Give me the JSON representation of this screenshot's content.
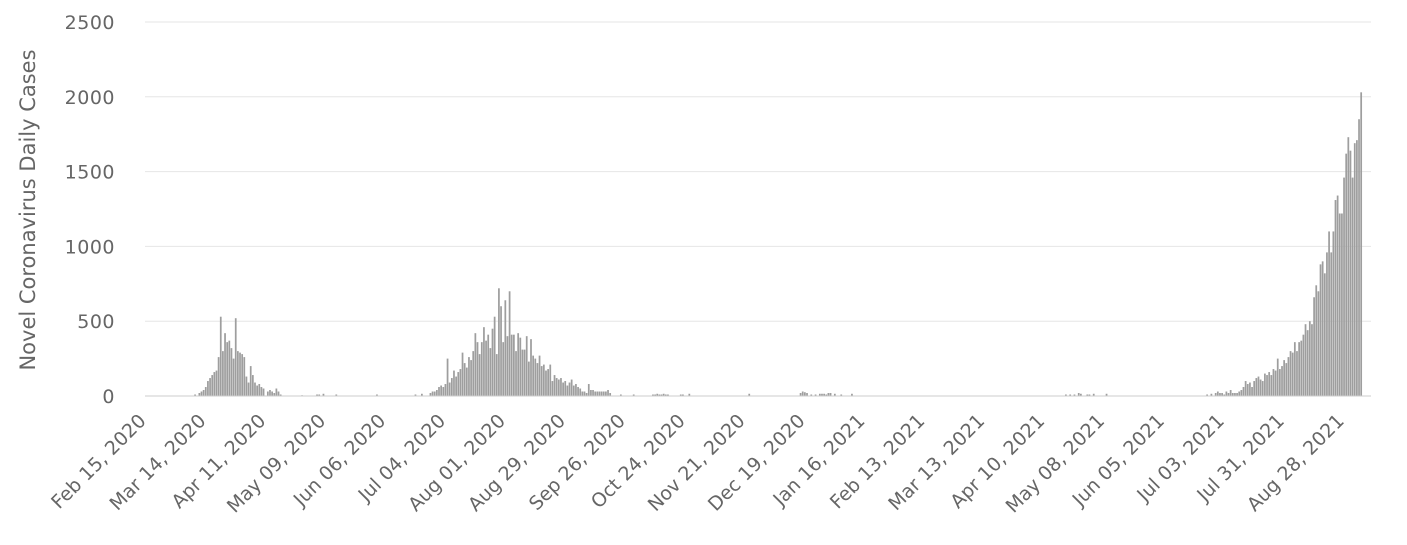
{
  "chart_data": {
    "type": "bar",
    "title": "",
    "xlabel": "",
    "ylabel": "Novel Coronavirus Daily Cases",
    "ylim": [
      0,
      2500
    ],
    "yticks": [
      0,
      500,
      1000,
      1500,
      2000,
      2500
    ],
    "grid": true,
    "legend": "none",
    "x_start": "Feb 15, 2020",
    "x_end": "Sep 09, 2021",
    "xtick_labels": [
      "Feb 15, 2020",
      "Mar 14, 2020",
      "Apr 11, 2020",
      "May 09, 2020",
      "Jun 06, 2020",
      "Jul 04, 2020",
      "Aug 01, 2020",
      "Aug 29, 2020",
      "Sep 26, 2020",
      "Oct 24, 2020",
      "Nov 21, 2020",
      "Dec 19, 2020",
      "Jan 16, 2021",
      "Feb 13, 2021",
      "Mar 13, 2021",
      "Apr 10, 2021",
      "May 08, 2021",
      "Jun 05, 2021",
      "Jul 03, 2021",
      "Jul 31, 2021",
      "Aug 28, 2021"
    ],
    "bar_color": "#9e9e9e",
    "series": [
      {
        "points": [
          [
            "Mar 09, 2020",
            10
          ],
          [
            "Mar 11, 2020",
            20
          ],
          [
            "Mar 12, 2020",
            30
          ],
          [
            "Mar 13, 2020",
            40
          ],
          [
            "Mar 14, 2020",
            60
          ],
          [
            "Mar 15, 2020",
            100
          ],
          [
            "Mar 16, 2020",
            120
          ],
          [
            "Mar 17, 2020",
            140
          ],
          [
            "Mar 18, 2020",
            160
          ],
          [
            "Mar 19, 2020",
            170
          ],
          [
            "Mar 20, 2020",
            260
          ],
          [
            "Mar 21, 2020",
            530
          ],
          [
            "Mar 22, 2020",
            300
          ],
          [
            "Mar 23, 2020",
            420
          ],
          [
            "Mar 24, 2020",
            360
          ],
          [
            "Mar 25, 2020",
            370
          ],
          [
            "Mar 26, 2020",
            320
          ],
          [
            "Mar 27, 2020",
            250
          ],
          [
            "Mar 28, 2020",
            520
          ],
          [
            "Mar 29, 2020",
            300
          ],
          [
            "Mar 30, 2020",
            290
          ],
          [
            "Mar 31, 2020",
            280
          ],
          [
            "Apr 01, 2020",
            260
          ],
          [
            "Apr 02, 2020",
            130
          ],
          [
            "Apr 03, 2020",
            90
          ],
          [
            "Apr 04, 2020",
            200
          ],
          [
            "Apr 05, 2020",
            140
          ],
          [
            "Apr 06, 2020",
            90
          ],
          [
            "Apr 07, 2020",
            70
          ],
          [
            "Apr 08, 2020",
            80
          ],
          [
            "Apr 09, 2020",
            60
          ],
          [
            "Apr 10, 2020",
            50
          ],
          [
            "Apr 12, 2020",
            30
          ],
          [
            "Apr 13, 2020",
            40
          ],
          [
            "Apr 14, 2020",
            30
          ],
          [
            "Apr 15, 2020",
            20
          ],
          [
            "Apr 16, 2020",
            50
          ],
          [
            "Apr 17, 2020",
            30
          ],
          [
            "Apr 18, 2020",
            10
          ],
          [
            "Apr 28, 2020",
            5
          ],
          [
            "May 05, 2020",
            10
          ],
          [
            "May 06, 2020",
            10
          ],
          [
            "May 08, 2020",
            15
          ],
          [
            "May 14, 2020",
            10
          ],
          [
            "Jun 02, 2020",
            10
          ],
          [
            "Jun 20, 2020",
            10
          ],
          [
            "Jun 23, 2020",
            15
          ],
          [
            "Jun 27, 2020",
            20
          ],
          [
            "Jun 28, 2020",
            30
          ],
          [
            "Jun 29, 2020",
            30
          ],
          [
            "Jun 30, 2020",
            40
          ],
          [
            "Jul 01, 2020",
            60
          ],
          [
            "Jul 02, 2020",
            70
          ],
          [
            "Jul 03, 2020",
            60
          ],
          [
            "Jul 04, 2020",
            80
          ],
          [
            "Jul 05, 2020",
            250
          ],
          [
            "Jul 06, 2020",
            90
          ],
          [
            "Jul 07, 2020",
            120
          ],
          [
            "Jul 08, 2020",
            170
          ],
          [
            "Jul 09, 2020",
            130
          ],
          [
            "Jul 10, 2020",
            160
          ],
          [
            "Jul 11, 2020",
            180
          ],
          [
            "Jul 12, 2020",
            290
          ],
          [
            "Jul 13, 2020",
            220
          ],
          [
            "Jul 14, 2020",
            190
          ],
          [
            "Jul 15, 2020",
            260
          ],
          [
            "Jul 16, 2020",
            240
          ],
          [
            "Jul 17, 2020",
            300
          ],
          [
            "Jul 18, 2020",
            420
          ],
          [
            "Jul 19, 2020",
            360
          ],
          [
            "Jul 20, 2020",
            280
          ],
          [
            "Jul 21, 2020",
            360
          ],
          [
            "Jul 22, 2020",
            460
          ],
          [
            "Jul 23, 2020",
            370
          ],
          [
            "Jul 24, 2020",
            410
          ],
          [
            "Jul 25, 2020",
            320
          ],
          [
            "Jul 26, 2020",
            450
          ],
          [
            "Jul 27, 2020",
            530
          ],
          [
            "Jul 28, 2020",
            280
          ],
          [
            "Jul 29, 2020",
            720
          ],
          [
            "Jul 30, 2020",
            600
          ],
          [
            "Jul 31, 2020",
            360
          ],
          [
            "Aug 01, 2020",
            640
          ],
          [
            "Aug 02, 2020",
            400
          ],
          [
            "Aug 03, 2020",
            700
          ],
          [
            "Aug 04, 2020",
            410
          ],
          [
            "Aug 05, 2020",
            410
          ],
          [
            "Aug 06, 2020",
            300
          ],
          [
            "Aug 07, 2020",
            420
          ],
          [
            "Aug 08, 2020",
            390
          ],
          [
            "Aug 09, 2020",
            310
          ],
          [
            "Aug 10, 2020",
            310
          ],
          [
            "Aug 11, 2020",
            400
          ],
          [
            "Aug 12, 2020",
            230
          ],
          [
            "Aug 13, 2020",
            380
          ],
          [
            "Aug 14, 2020",
            270
          ],
          [
            "Aug 15, 2020",
            250
          ],
          [
            "Aug 16, 2020",
            220
          ],
          [
            "Aug 17, 2020",
            270
          ],
          [
            "Aug 18, 2020",
            200
          ],
          [
            "Aug 19, 2020",
            210
          ],
          [
            "Aug 20, 2020",
            170
          ],
          [
            "Aug 21, 2020",
            180
          ],
          [
            "Aug 22, 2020",
            210
          ],
          [
            "Aug 23, 2020",
            100
          ],
          [
            "Aug 24, 2020",
            140
          ],
          [
            "Aug 25, 2020",
            120
          ],
          [
            "Aug 26, 2020",
            110
          ],
          [
            "Aug 27, 2020",
            120
          ],
          [
            "Aug 28, 2020",
            90
          ],
          [
            "Aug 29, 2020",
            100
          ],
          [
            "Aug 30, 2020",
            70
          ],
          [
            "Aug 31, 2020",
            90
          ],
          [
            "Sep 01, 2020",
            110
          ],
          [
            "Sep 02, 2020",
            70
          ],
          [
            "Sep 03, 2020",
            80
          ],
          [
            "Sep 04, 2020",
            60
          ],
          [
            "Sep 05, 2020",
            50
          ],
          [
            "Sep 06, 2020",
            30
          ],
          [
            "Sep 07, 2020",
            30
          ],
          [
            "Sep 08, 2020",
            20
          ],
          [
            "Sep 09, 2020",
            80
          ],
          [
            "Sep 10, 2020",
            40
          ],
          [
            "Sep 11, 2020",
            40
          ],
          [
            "Sep 12, 2020",
            30
          ],
          [
            "Sep 13, 2020",
            30
          ],
          [
            "Sep 14, 2020",
            30
          ],
          [
            "Sep 15, 2020",
            30
          ],
          [
            "Sep 16, 2020",
            30
          ],
          [
            "Sep 17, 2020",
            30
          ],
          [
            "Sep 18, 2020",
            40
          ],
          [
            "Sep 19, 2020",
            20
          ],
          [
            "Sep 24, 2020",
            10
          ],
          [
            "Sep 30, 2020",
            10
          ],
          [
            "Oct 09, 2020",
            10
          ],
          [
            "Oct 10, 2020",
            10
          ],
          [
            "Oct 11, 2020",
            15
          ],
          [
            "Oct 12, 2020",
            10
          ],
          [
            "Oct 13, 2020",
            10
          ],
          [
            "Oct 14, 2020",
            15
          ],
          [
            "Oct 15, 2020",
            10
          ],
          [
            "Oct 16, 2020",
            10
          ],
          [
            "Oct 22, 2020",
            10
          ],
          [
            "Oct 23, 2020",
            10
          ],
          [
            "Oct 26, 2020",
            15
          ],
          [
            "Nov 23, 2020",
            15
          ],
          [
            "Dec 17, 2020",
            20
          ],
          [
            "Dec 18, 2020",
            30
          ],
          [
            "Dec 19, 2020",
            25
          ],
          [
            "Dec 20, 2020",
            20
          ],
          [
            "Dec 22, 2020",
            10
          ],
          [
            "Dec 24, 2020",
            10
          ],
          [
            "Dec 26, 2020",
            15
          ],
          [
            "Dec 27, 2020",
            15
          ],
          [
            "Dec 28, 2020",
            15
          ],
          [
            "Dec 29, 2020",
            10
          ],
          [
            "Dec 30, 2020",
            20
          ],
          [
            "Dec 31, 2020",
            20
          ],
          [
            "Jan 02, 2021",
            15
          ],
          [
            "Jan 05, 2021",
            10
          ],
          [
            "Jan 10, 2021",
            15
          ],
          [
            "Apr 20, 2021",
            10
          ],
          [
            "Apr 22, 2021",
            10
          ],
          [
            "Apr 24, 2021",
            10
          ],
          [
            "Apr 26, 2021",
            20
          ],
          [
            "Apr 27, 2021",
            15
          ],
          [
            "Apr 30, 2021",
            10
          ],
          [
            "May 01, 2021",
            10
          ],
          [
            "May 03, 2021",
            15
          ],
          [
            "May 09, 2021",
            15
          ],
          [
            "Jun 25, 2021",
            10
          ],
          [
            "Jun 27, 2021",
            15
          ],
          [
            "Jun 29, 2021",
            20
          ],
          [
            "Jun 30, 2021",
            30
          ],
          [
            "Jul 01, 2021",
            20
          ],
          [
            "Jul 02, 2021",
            20
          ],
          [
            "Jul 03, 2021",
            10
          ],
          [
            "Jul 04, 2021",
            30
          ],
          [
            "Jul 05, 2021",
            20
          ],
          [
            "Jul 06, 2021",
            40
          ],
          [
            "Jul 07, 2021",
            20
          ],
          [
            "Jul 08, 2021",
            20
          ],
          [
            "Jul 09, 2021",
            20
          ],
          [
            "Jul 10, 2021",
            30
          ],
          [
            "Jul 11, 2021",
            40
          ],
          [
            "Jul 12, 2021",
            60
          ],
          [
            "Jul 13, 2021",
            100
          ],
          [
            "Jul 14, 2021",
            80
          ],
          [
            "Jul 15, 2021",
            90
          ],
          [
            "Jul 16, 2021",
            60
          ],
          [
            "Jul 17, 2021",
            100
          ],
          [
            "Jul 18, 2021",
            120
          ],
          [
            "Jul 19, 2021",
            130
          ],
          [
            "Jul 20, 2021",
            110
          ],
          [
            "Jul 21, 2021",
            100
          ],
          [
            "Jul 22, 2021",
            150
          ],
          [
            "Jul 23, 2021",
            140
          ],
          [
            "Jul 24, 2021",
            160
          ],
          [
            "Jul 25, 2021",
            140
          ],
          [
            "Jul 26, 2021",
            180
          ],
          [
            "Jul 27, 2021",
            170
          ],
          [
            "Jul 28, 2021",
            250
          ],
          [
            "Jul 29, 2021",
            180
          ],
          [
            "Jul 30, 2021",
            200
          ],
          [
            "Jul 31, 2021",
            240
          ],
          [
            "Aug 01, 2021",
            220
          ],
          [
            "Aug 02, 2021",
            260
          ],
          [
            "Aug 03, 2021",
            300
          ],
          [
            "Aug 04, 2021",
            290
          ],
          [
            "Aug 05, 2021",
            360
          ],
          [
            "Aug 06, 2021",
            300
          ],
          [
            "Aug 07, 2021",
            360
          ],
          [
            "Aug 08, 2021",
            370
          ],
          [
            "Aug 09, 2021",
            410
          ],
          [
            "Aug 10, 2021",
            480
          ],
          [
            "Aug 11, 2021",
            440
          ],
          [
            "Aug 12, 2021",
            500
          ],
          [
            "Aug 13, 2021",
            480
          ],
          [
            "Aug 14, 2021",
            660
          ],
          [
            "Aug 15, 2021",
            740
          ],
          [
            "Aug 16, 2021",
            700
          ],
          [
            "Aug 17, 2021",
            880
          ],
          [
            "Aug 18, 2021",
            900
          ],
          [
            "Aug 19, 2021",
            820
          ],
          [
            "Aug 20, 2021",
            960
          ],
          [
            "Aug 21, 2021",
            1100
          ],
          [
            "Aug 22, 2021",
            960
          ],
          [
            "Aug 23, 2021",
            1100
          ],
          [
            "Aug 24, 2021",
            1310
          ],
          [
            "Aug 25, 2021",
            1340
          ],
          [
            "Aug 26, 2021",
            1220
          ],
          [
            "Aug 27, 2021",
            1220
          ],
          [
            "Aug 28, 2021",
            1460
          ],
          [
            "Aug 29, 2021",
            1620
          ],
          [
            "Aug 30, 2021",
            1730
          ],
          [
            "Aug 31, 2021",
            1640
          ],
          [
            "Sep 01, 2021",
            1460
          ],
          [
            "Sep 02, 2021",
            1690
          ],
          [
            "Sep 03, 2021",
            1710
          ],
          [
            "Sep 04, 2021",
            1850
          ],
          [
            "Sep 05, 2021",
            2030
          ]
        ]
      }
    ]
  }
}
